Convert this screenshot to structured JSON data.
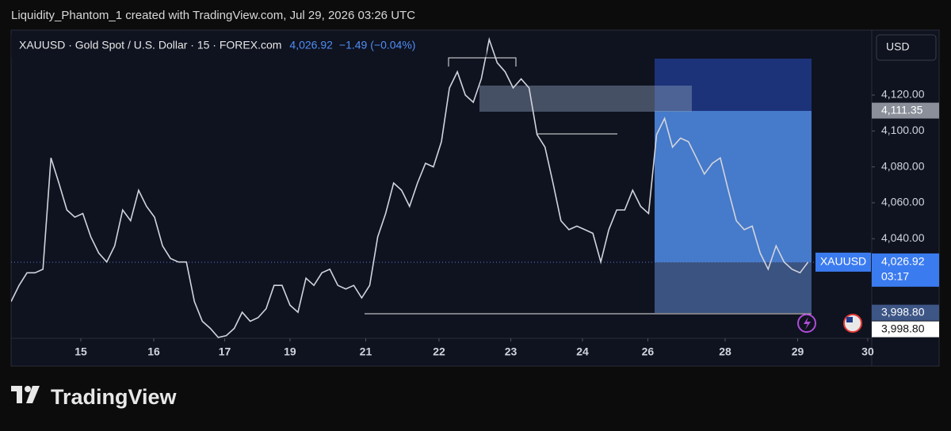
{
  "header": {
    "attribution": "Liquidity_Phantom_1 created with TradingView.com, Jul 29, 2026 03:26 UTC"
  },
  "footer": {
    "brand": "TradingView"
  },
  "chart_data": {
    "type": "line",
    "title": "XAUUSD · Gold Spot / U.S. Dollar · 15 · FOREX.com",
    "last_price": {
      "value": 4026.92,
      "label": "4,026.92"
    },
    "change": "−1.49 (−0.04%)",
    "symbol_label": "XAUUSD",
    "countdown": "03:17",
    "currency": "USD",
    "color": "#d1d4dc",
    "values": [
      4005,
      4014,
      4021,
      4021,
      4023,
      4085,
      4071,
      4056,
      4052,
      4054,
      4041,
      4032,
      4027,
      4036,
      4056,
      4050,
      4067,
      4058,
      4052,
      4036,
      4029,
      4027,
      4027,
      4005,
      3994,
      3990,
      3985,
      3986,
      3990,
      3999,
      3994,
      3996,
      4001,
      4014,
      4014,
      4003,
      3999,
      4018,
      4014,
      4021,
      4023,
      4014,
      4012,
      4014,
      4007,
      4014,
      4041,
      4054,
      4071,
      4067,
      4058,
      4071,
      4082,
      4080,
      4094,
      4124,
      4133,
      4120,
      4116,
      4129,
      4151,
      4138,
      4133,
      4124,
      4129,
      4124,
      4098,
      4091,
      4071,
      4050,
      4045,
      4047,
      4045,
      4043,
      4027,
      4045,
      4056,
      4056,
      4067,
      4058,
      4054,
      4098,
      4107,
      4091,
      4096,
      4094,
      4085,
      4076,
      4082,
      4085,
      4067,
      4050,
      4045,
      4047,
      4032,
      4023,
      4036,
      4027,
      4023,
      4021,
      4026.92
    ],
    "xlim": [
      0,
      108
    ],
    "xticks": [
      {
        "value": 8.75,
        "label": "15"
      },
      {
        "value": 17.9,
        "label": "16"
      },
      {
        "value": 26.8,
        "label": "17"
      },
      {
        "value": 35,
        "label": "19"
      },
      {
        "value": 44.5,
        "label": "21"
      },
      {
        "value": 53.7,
        "label": "22"
      },
      {
        "value": 62.7,
        "label": "23"
      },
      {
        "value": 71.7,
        "label": "24"
      },
      {
        "value": 79.9,
        "label": "26"
      },
      {
        "value": 89.6,
        "label": "28"
      },
      {
        "value": 98.7,
        "label": "29"
      },
      {
        "value": 107.5,
        "label": "30"
      }
    ],
    "ylim": [
      3984.5,
      4156.2
    ],
    "yticks": [
      {
        "value": 4040,
        "label": "4,040.00"
      },
      {
        "value": 4060,
        "label": "4,060.00"
      },
      {
        "value": 4080,
        "label": "4,080.00"
      },
      {
        "value": 4100,
        "label": "4,100.00"
      },
      {
        "value": 4120,
        "label": "4,120.00"
      }
    ],
    "price_labels": [
      {
        "value": 4111.35,
        "label": "4,111.35"
      },
      {
        "value": 3998.8,
        "label": "3,998.80"
      },
      {
        "value": 3998.8,
        "label": "3,998.80"
      }
    ]
  }
}
